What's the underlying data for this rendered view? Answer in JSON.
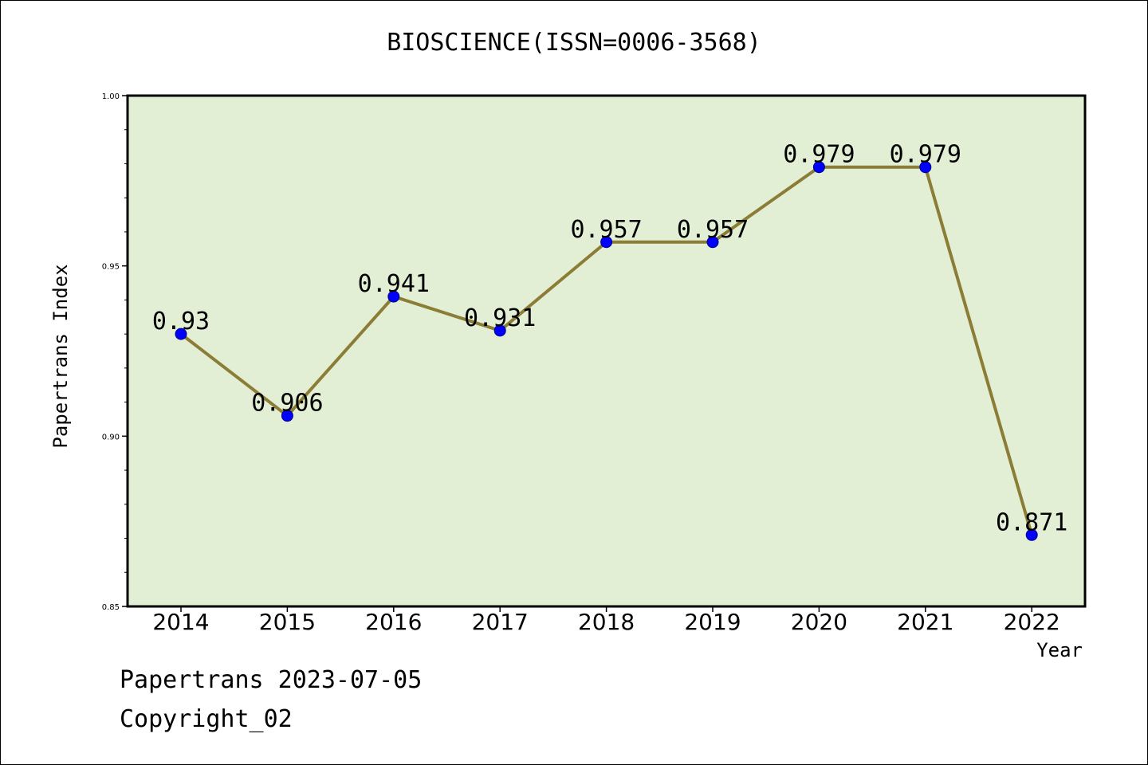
{
  "title": "BIOSCIENCE(ISSN=0006-3568)",
  "footer": {
    "date_line": "Papertrans 2023-07-05",
    "copyright_line": "Copyright_02"
  },
  "colors": {
    "plot_background": "#e2efd5",
    "line": "#8b7d35",
    "marker": "#0000ff",
    "marker_edge": "#00008b"
  },
  "chart_data": {
    "type": "line",
    "title": "BIOSCIENCE(ISSN=0006-3568)",
    "xlabel": "Year",
    "ylabel": "Papertrans Index",
    "categories": [
      "2014",
      "2015",
      "2016",
      "2017",
      "2018",
      "2019",
      "2020",
      "2021",
      "2022"
    ],
    "series": [
      {
        "values": [
          0.93,
          0.906,
          0.941,
          0.931,
          0.957,
          0.957,
          0.979,
          0.979,
          0.871
        ],
        "labels": [
          "0.93",
          "0.906",
          "0.941",
          "0.931",
          "0.957",
          "0.957",
          "0.979",
          "0.979",
          "0.871"
        ]
      }
    ],
    "ylim": [
      0.85,
      1.0
    ],
    "yticks_major": [
      0.85,
      0.9,
      0.95,
      1.0
    ],
    "ytick_labels": [
      "0.85",
      "0.90",
      "0.95",
      "1.00"
    ],
    "yticks_minor_step": 0.01,
    "grid": false,
    "legend": "none"
  }
}
